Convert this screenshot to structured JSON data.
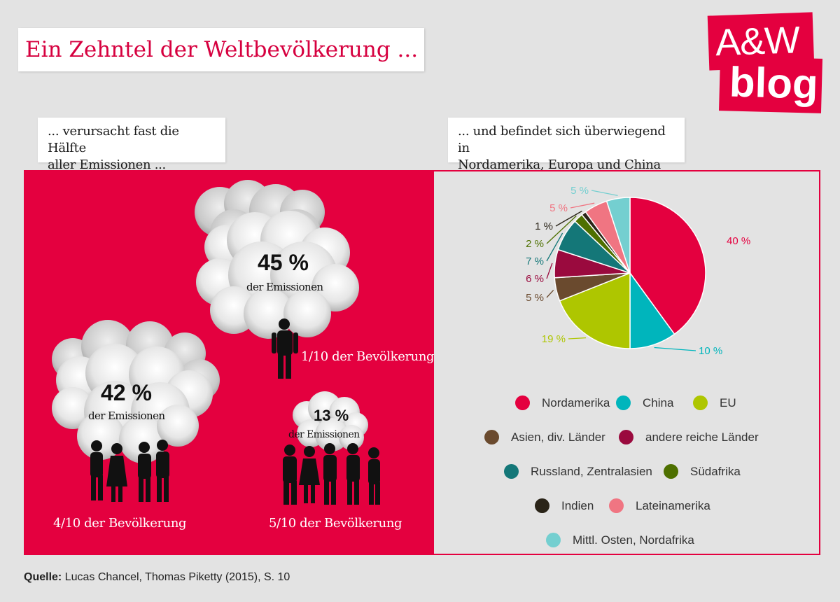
{
  "title": "Ein Zehntel der Weltbevölkerung ...",
  "logo": {
    "line1": "A&W",
    "line2": "blog"
  },
  "left": {
    "subtitle_line1": "... verursacht fast die Hälfte",
    "subtitle_line2": "aller Emissionen ...",
    "groups": [
      {
        "pct": "45 %",
        "emissions_label": "der Emissionen",
        "population_label": "1/10 der Bevölkerung"
      },
      {
        "pct": "42 %",
        "emissions_label": "der Emissionen",
        "population_label": "4/10 der Bevölkerung"
      },
      {
        "pct": "13 %",
        "emissions_label": "der Emissionen",
        "population_label": "5/10 der Bevölkerung"
      }
    ]
  },
  "right": {
    "subtitle_line1": "... und befindet sich überwiegend in",
    "subtitle_line2": "Nordamerika, Europa und China"
  },
  "chart_data": {
    "type": "pie",
    "start_angle_deg": 0,
    "direction": "clockwise",
    "labels": [
      "Nordamerika",
      "China",
      "EU",
      "Asien, div. Länder",
      "andere reiche Länder",
      "Russland, Zentralasien",
      "Südafrika",
      "Indien",
      "Lateinamerika",
      "Mittl. Osten, Nordafrika"
    ],
    "values": [
      40,
      10,
      19,
      5,
      6,
      7,
      2,
      1,
      5,
      5
    ],
    "value_labels": [
      "40 %",
      "10 %",
      "19 %",
      "5 %",
      "6 %",
      "7 %",
      "2 %",
      "1 %",
      "5 %",
      "5 %"
    ],
    "colors": [
      "#e4003f",
      "#00b5bc",
      "#aec600",
      "#6a4a2e",
      "#9a0a3e",
      "#147778",
      "#4e7000",
      "#2a2418",
      "#f07582",
      "#74cfd0"
    ],
    "legend_placement": "bottom"
  },
  "source": {
    "prefix": "Quelle:",
    "text": " Lucas Chancel, Thomas Piketty (2015), S. 10"
  }
}
